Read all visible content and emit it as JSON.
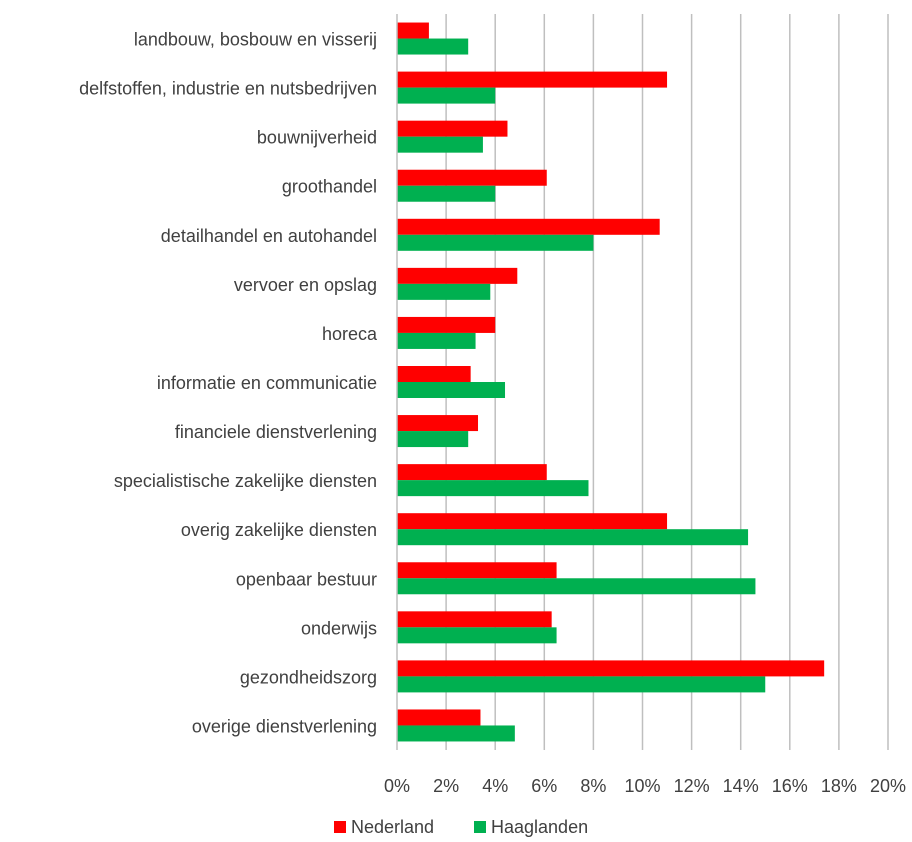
{
  "chart_data": {
    "type": "bar",
    "orientation": "horizontal",
    "categories": [
      "landbouw, bosbouw en visserij",
      "delfstoffen, industrie en nutsbedrijven",
      "bouwnijverheid",
      "groothandel",
      "detailhandel en autohandel",
      "vervoer en opslag",
      "horeca",
      "informatie en communicatie",
      "financiele dienstverlening",
      "specialistische zakelijke diensten",
      "overig zakelijke diensten",
      "openbaar bestuur",
      "onderwijs",
      "gezondheidszorg",
      "overige dienstverlening"
    ],
    "series": [
      {
        "name": "Nederland",
        "color": "#ff0000",
        "values": [
          1.3,
          11.0,
          4.5,
          6.1,
          10.7,
          4.9,
          4.0,
          3.0,
          3.3,
          6.1,
          11.0,
          6.5,
          6.3,
          17.4,
          3.4
        ]
      },
      {
        "name": "Haaglanden",
        "color": "#00b050",
        "values": [
          2.9,
          4.0,
          3.5,
          4.0,
          8.0,
          3.8,
          3.2,
          4.4,
          2.9,
          7.8,
          14.3,
          14.6,
          6.5,
          15.0,
          4.8
        ]
      }
    ],
    "xlim": [
      0,
      20
    ],
    "xticks": [
      "0%",
      "2%",
      "4%",
      "6%",
      "8%",
      "10%",
      "12%",
      "14%",
      "16%",
      "18%",
      "20%"
    ],
    "grid": true,
    "legend_position": "bottom"
  }
}
